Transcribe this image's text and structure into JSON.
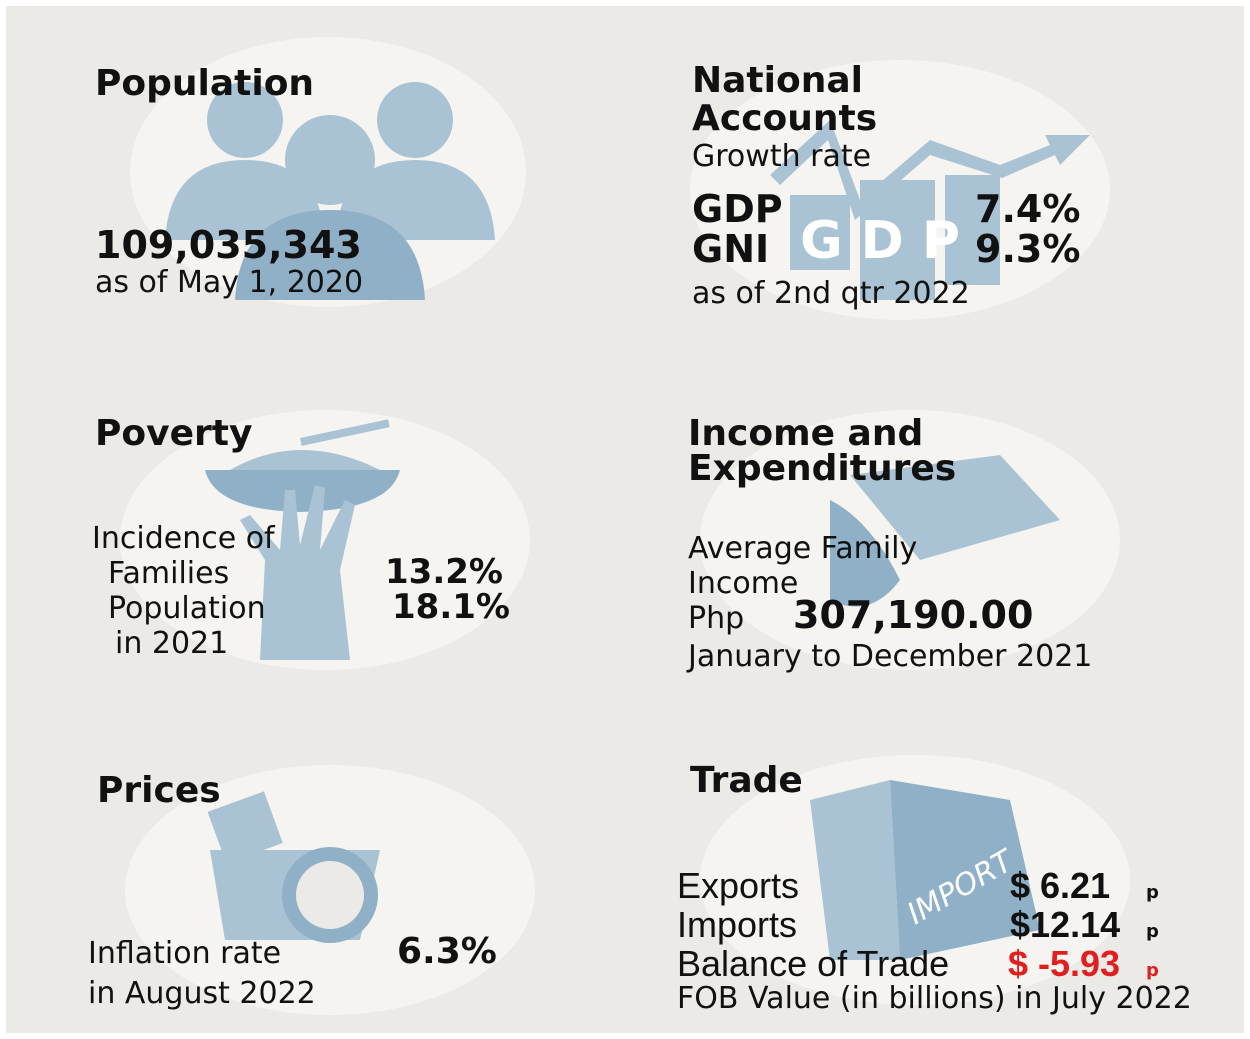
{
  "population": {
    "title": "Population",
    "value": "109,035,343",
    "note": "as of May 1, 2020"
  },
  "national_accounts": {
    "title_lines": [
      "National",
      "Accounts"
    ],
    "subtitle": "Growth rate",
    "icon_label": "GDP",
    "rows": [
      {
        "label": "GDP",
        "value": "7.4%"
      },
      {
        "label": "GNI",
        "value": "9.3%"
      }
    ],
    "note": "as of 2nd qtr 2022"
  },
  "poverty": {
    "title": "Poverty",
    "label": "Incidence of",
    "rows": [
      {
        "label": "Families",
        "value": "13.2%"
      },
      {
        "label": "Population",
        "value": "18.1%"
      }
    ],
    "note": "in 2021"
  },
  "income": {
    "title_lines": [
      "Income and",
      "Expenditures"
    ],
    "label_lines": [
      "Average Family",
      "Income"
    ],
    "currency": "Php",
    "value": "307,190.00",
    "note": "January to December 2021"
  },
  "prices": {
    "title": "Prices",
    "label": "Inflation rate",
    "value": "6.3%",
    "note": "in August 2022"
  },
  "trade": {
    "title": "Trade",
    "icon_label": "IMPORT",
    "rows": [
      {
        "label": "Exports",
        "value": "$ 6.21",
        "flag": "p"
      },
      {
        "label": "Imports",
        "value": "$12.14",
        "flag": "p"
      },
      {
        "label": "Balance of Trade",
        "value": "$ -5.93",
        "flag": "p"
      }
    ],
    "note": "FOB Value (in billions) in July 2022"
  }
}
